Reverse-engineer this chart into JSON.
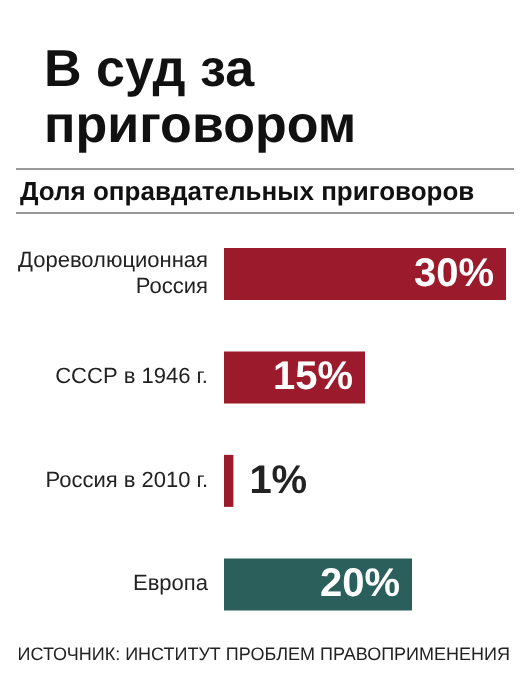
{
  "chart_data": {
    "type": "bar",
    "orientation": "horizontal",
    "title": "В суд за приговором",
    "subtitle": "Доля оправдательных приговоров",
    "categories": [
      "Дореволюционная Россия",
      "СССР в 1946 г.",
      "Россия в 2010 г.",
      "Европа"
    ],
    "values": [
      30,
      15,
      1,
      20
    ],
    "value_labels": [
      "30%",
      "15%",
      "1%",
      "20%"
    ],
    "colors": [
      "#9b1b2c",
      "#9b1b2c",
      "#9b1b2c",
      "#2a5f5c"
    ],
    "annotations": [
      "ИСТОЧНИК: ИНСТИТУТ ПРОБЛЕМ ПРАВОПРИМЕНЕНИЯ"
    ]
  }
}
